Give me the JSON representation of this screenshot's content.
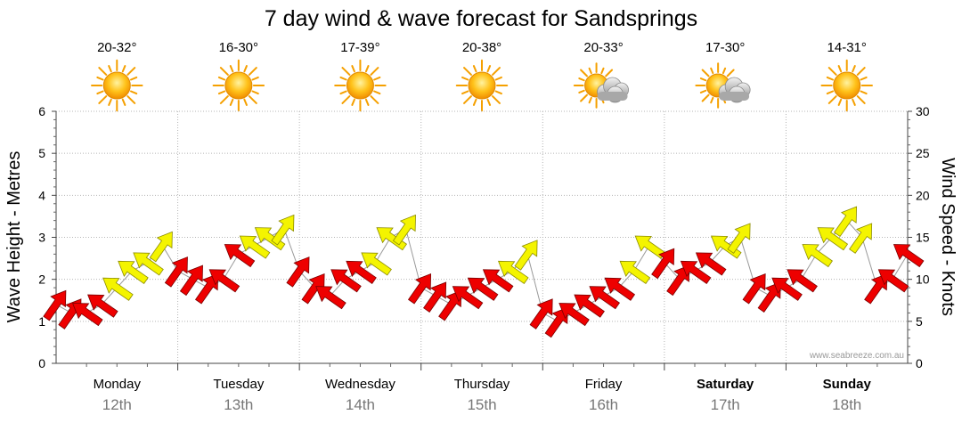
{
  "chart_data": {
    "type": "line",
    "title": "7 day wind & wave forecast for Sandsprings",
    "ylabel_left": "Wave Height - Metres",
    "ylabel_right": "Wind Speed - Knots",
    "ylim_left": [
      0,
      6
    ],
    "ylim_right": [
      0,
      30
    ],
    "yticks_left": [
      "0",
      "1",
      "2",
      "3",
      "4",
      "5",
      "6"
    ],
    "yticks_right": [
      "0",
      "5",
      "10",
      "15",
      "20",
      "25",
      "30"
    ],
    "grid": true,
    "watermark": "www.seabreeze.com.au",
    "days": [
      {
        "day": "Monday",
        "date": "12th",
        "temp": "20-32°",
        "icon": "sun-icon",
        "bold": false
      },
      {
        "day": "Tuesday",
        "date": "13th",
        "temp": "16-30°",
        "icon": "sun-icon",
        "bold": false
      },
      {
        "day": "Wednesday",
        "date": "14th",
        "temp": "17-39°",
        "icon": "sun-icon",
        "bold": false
      },
      {
        "day": "Thursday",
        "date": "15th",
        "temp": "20-38°",
        "icon": "sun-icon",
        "bold": false
      },
      {
        "day": "Friday",
        "date": "16th",
        "temp": "20-33°",
        "icon": "sun-cloud-icon",
        "bold": false
      },
      {
        "day": "Saturday",
        "date": "17th",
        "temp": "17-30°",
        "icon": "sun-cloud-icon",
        "bold": true
      },
      {
        "day": "Sunday",
        "date": "18th",
        "temp": "14-31°",
        "icon": "sun-icon",
        "bold": true
      }
    ],
    "series": [
      {
        "name": "Wind Speed - Knots",
        "axis": "right",
        "x_unit": "hours from Monday 00:00",
        "x": [
          0,
          3,
          6,
          9,
          12,
          15,
          18,
          21,
          24,
          27,
          30,
          33,
          36,
          39,
          42,
          45,
          48,
          51,
          54,
          57,
          60,
          63,
          66,
          69,
          72,
          75,
          78,
          81,
          84,
          87,
          90,
          93,
          96,
          99,
          102,
          105,
          108,
          111,
          114,
          117,
          120,
          123,
          126,
          129,
          132,
          135,
          138,
          141,
          144,
          147,
          150,
          153,
          156,
          159,
          162,
          165,
          168
        ],
        "values": [
          7,
          6,
          6,
          7,
          9,
          11,
          12,
          14,
          11,
          10,
          9,
          10,
          13,
          14,
          15,
          16,
          11,
          9,
          8,
          10,
          11,
          12,
          15,
          16,
          9,
          8,
          7,
          8,
          9,
          10,
          11,
          13,
          6,
          5,
          6,
          7,
          8,
          9,
          11,
          14,
          12,
          10,
          11,
          12,
          14,
          15,
          9,
          8,
          9,
          10,
          13,
          15,
          17,
          15,
          9,
          10,
          13
        ],
        "arrow_color": [
          "red",
          "red",
          "red",
          "red",
          "yellow",
          "yellow",
          "yellow",
          "yellow",
          "red",
          "red",
          "red",
          "red",
          "red",
          "yellow",
          "yellow",
          "yellow",
          "red",
          "red",
          "red",
          "red",
          "red",
          "yellow",
          "yellow",
          "yellow",
          "red",
          "red",
          "red",
          "red",
          "red",
          "red",
          "yellow",
          "yellow",
          "red",
          "red",
          "red",
          "red",
          "red",
          "red",
          "yellow",
          "yellow",
          "red",
          "red",
          "red",
          "red",
          "yellow",
          "yellow",
          "red",
          "red",
          "red",
          "red",
          "yellow",
          "yellow",
          "yellow",
          "yellow",
          "red",
          "red",
          "red"
        ]
      }
    ]
  }
}
